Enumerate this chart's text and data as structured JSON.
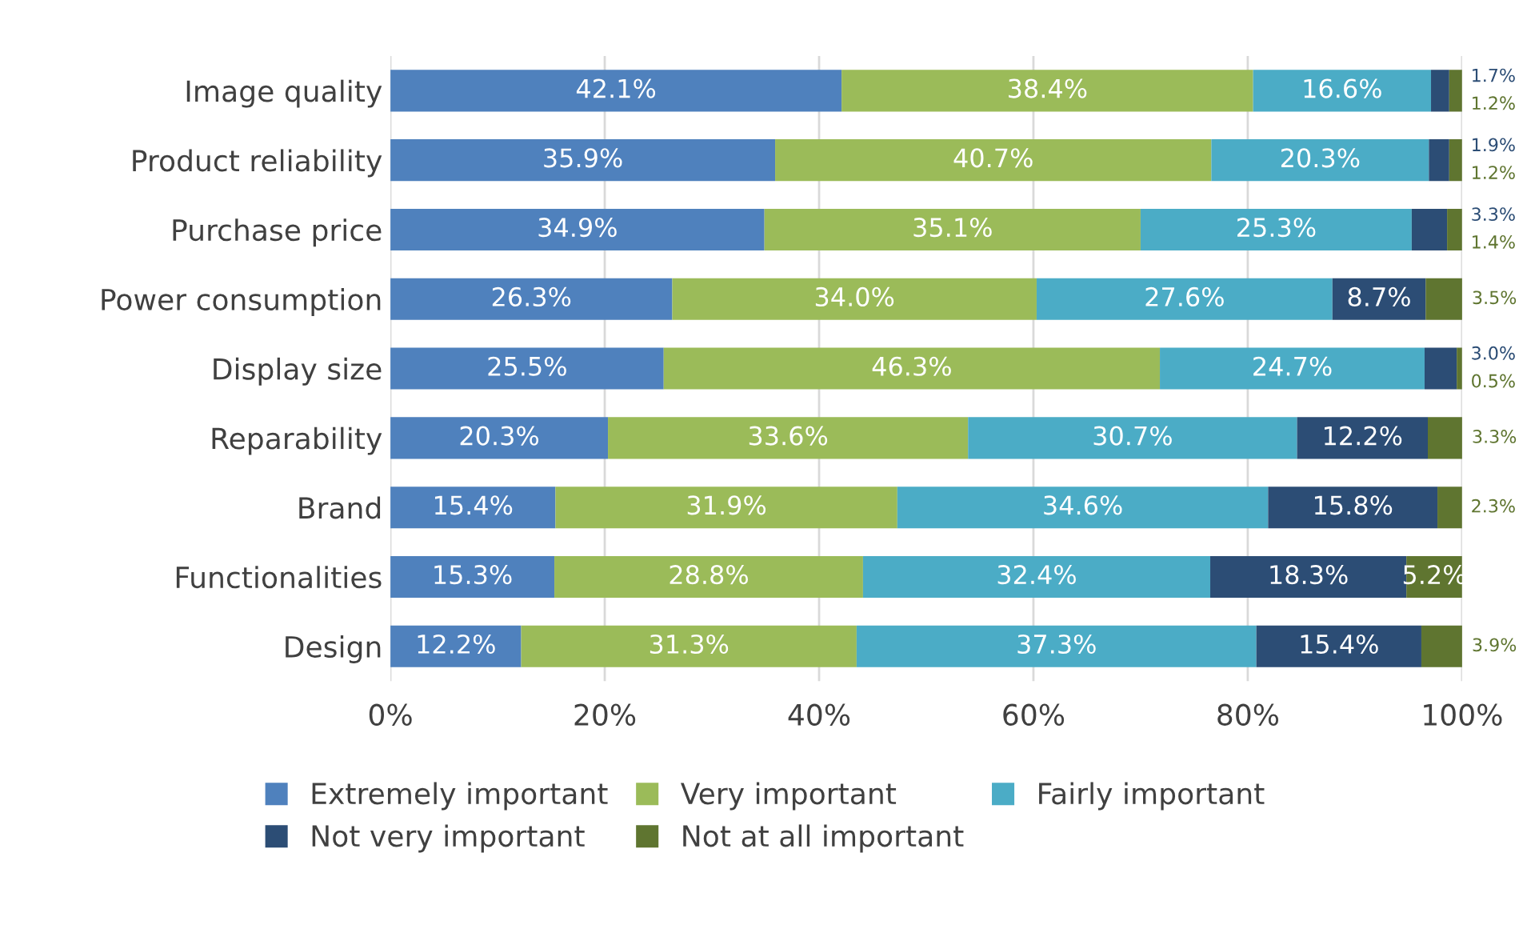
{
  "chart_data": {
    "type": "bar",
    "orientation": "horizontal",
    "stacked": true,
    "categories": [
      "Image quality",
      "Product reliability",
      "Purchase price",
      "Power consumption",
      "Display size",
      "Reparability",
      "Brand",
      "Functionalities",
      "Design"
    ],
    "series": [
      {
        "name": "Extremely important",
        "color": "#4f81bd",
        "values": [
          42.1,
          35.9,
          34.9,
          26.3,
          25.5,
          20.3,
          15.4,
          15.3,
          12.2
        ],
        "value_labels": [
          "42.1%",
          "35.9%",
          "34.9%",
          "26.3%",
          "25.5%",
          "20.3%",
          "15.4%",
          "15.3%",
          "12.2%"
        ]
      },
      {
        "name": "Very important",
        "color": "#9bbb59",
        "values": [
          38.4,
          40.7,
          35.1,
          34.0,
          46.3,
          33.6,
          31.9,
          28.8,
          31.3
        ],
        "value_labels": [
          "38.4%",
          "40.7%",
          "35.1%",
          "34.0%",
          "46.3%",
          "33.6%",
          "31.9%",
          "28.8%",
          "31.3%"
        ]
      },
      {
        "name": "Fairly important",
        "color": "#4bacc6",
        "values": [
          16.6,
          20.3,
          25.3,
          27.6,
          24.7,
          30.7,
          34.6,
          32.4,
          37.3
        ],
        "value_labels": [
          "16.6%",
          "20.3%",
          "25.3%",
          "27.6%",
          "24.7%",
          "30.7%",
          "34.6%",
          "32.4%",
          "37.3%"
        ]
      },
      {
        "name": "Not very important",
        "color": "#2c4d75",
        "values": [
          1.7,
          1.9,
          3.3,
          8.7,
          3.0,
          12.2,
          15.8,
          18.3,
          15.4
        ],
        "value_labels": [
          "1.7%",
          "1.9%",
          "3.3%",
          "8.7%",
          "3.0%",
          "12.2%",
          "15.8%",
          "18.3%",
          "15.4%"
        ]
      },
      {
        "name": "Not at all important",
        "color": "#5f7530",
        "values": [
          1.2,
          1.2,
          1.4,
          3.5,
          0.5,
          3.3,
          2.3,
          5.2,
          3.9
        ],
        "value_labels": [
          "1.2%",
          "1.2%",
          "1.4%",
          "3.5%",
          "0.5%",
          "3.3%",
          "2.3%",
          "5.2%",
          "3.9%"
        ]
      }
    ],
    "xlim": [
      0,
      100
    ],
    "xticks": [
      {
        "value": 0,
        "label": "0%"
      },
      {
        "value": 20,
        "label": "20%"
      },
      {
        "value": 40,
        "label": "40%"
      },
      {
        "value": 60,
        "label": "60%"
      },
      {
        "value": 80,
        "label": "80%"
      },
      {
        "value": 100,
        "label": "100%"
      }
    ],
    "grid": "x",
    "legend": "bottom"
  }
}
